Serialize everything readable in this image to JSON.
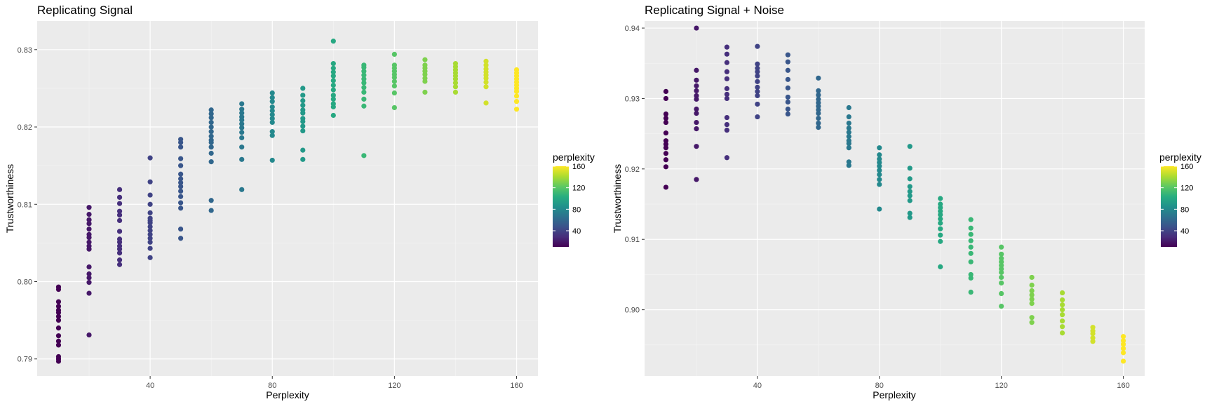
{
  "chart_data": [
    {
      "type": "scatter",
      "title": "Replicating Signal",
      "xlabel": "Perplexity",
      "ylabel": "Trustworthiness",
      "xlim": [
        3,
        167
      ],
      "ylim": [
        0.7878,
        0.8337
      ],
      "xticks": [
        40,
        80,
        120,
        160
      ],
      "yticks": [
        0.79,
        0.8,
        0.81,
        0.82,
        0.83
      ],
      "ytick_labels": [
        "0.79",
        "0.80",
        "0.81",
        "0.82",
        "0.83"
      ],
      "color_by": "perplexity",
      "points": [
        {
          "x": 10,
          "y": [
            0.7897,
            0.79,
            0.7903,
            0.7918,
            0.7923,
            0.793,
            0.794,
            0.795,
            0.7955,
            0.796,
            0.7963,
            0.7968,
            0.7974,
            0.799,
            0.7993
          ]
        },
        {
          "x": 20,
          "y": [
            0.7931,
            0.7985,
            0.7999,
            0.8005,
            0.801,
            0.8019,
            0.8042,
            0.8046,
            0.8051,
            0.8057,
            0.8061,
            0.8068,
            0.8075,
            0.808,
            0.8087,
            0.8096
          ]
        },
        {
          "x": 30,
          "y": [
            0.8022,
            0.8028,
            0.8037,
            0.8042,
            0.8046,
            0.8051,
            0.8055,
            0.8065,
            0.8079,
            0.8086,
            0.8091,
            0.8101,
            0.8109,
            0.8119
          ]
        },
        {
          "x": 40,
          "y": [
            0.8031,
            0.8043,
            0.8051,
            0.8056,
            0.8061,
            0.8066,
            0.8071,
            0.8076,
            0.8079,
            0.8082,
            0.8089,
            0.81,
            0.8112,
            0.8129,
            0.816
          ]
        },
        {
          "x": 50,
          "y": [
            0.8056,
            0.8068,
            0.8095,
            0.8102,
            0.811,
            0.8117,
            0.8123,
            0.8128,
            0.8133,
            0.8139,
            0.815,
            0.8159,
            0.8174,
            0.818,
            0.8184
          ]
        },
        {
          "x": 60,
          "y": [
            0.8092,
            0.8105,
            0.8155,
            0.8166,
            0.8174,
            0.818,
            0.8183,
            0.8188,
            0.8194,
            0.82,
            0.8206,
            0.8212,
            0.8217,
            0.8222
          ]
        },
        {
          "x": 70,
          "y": [
            0.8119,
            0.8158,
            0.8174,
            0.8186,
            0.8193,
            0.8199,
            0.8204,
            0.8209,
            0.8213,
            0.8218,
            0.8223,
            0.823
          ]
        },
        {
          "x": 80,
          "y": [
            0.8157,
            0.8189,
            0.8194,
            0.8206,
            0.8211,
            0.8216,
            0.8221,
            0.8226,
            0.8233,
            0.8238,
            0.8244
          ]
        },
        {
          "x": 90,
          "y": [
            0.8158,
            0.817,
            0.8195,
            0.8201,
            0.8207,
            0.8211,
            0.8218,
            0.8222,
            0.8228,
            0.8234,
            0.8241,
            0.825
          ]
        },
        {
          "x": 100,
          "y": [
            0.8215,
            0.8226,
            0.823,
            0.8236,
            0.8241,
            0.8248,
            0.8254,
            0.826,
            0.8266,
            0.8271,
            0.8276,
            0.8282,
            0.8311
          ]
        },
        {
          "x": 110,
          "y": [
            0.8163,
            0.8227,
            0.8236,
            0.8245,
            0.8251,
            0.8257,
            0.8262,
            0.8267,
            0.8272,
            0.8277,
            0.828
          ]
        },
        {
          "x": 120,
          "y": [
            0.8225,
            0.8244,
            0.8253,
            0.8259,
            0.8264,
            0.8268,
            0.8272,
            0.8276,
            0.828,
            0.8294
          ]
        },
        {
          "x": 130,
          "y": [
            0.8245,
            0.8259,
            0.8263,
            0.8268,
            0.8272,
            0.8276,
            0.828,
            0.8287
          ]
        },
        {
          "x": 140,
          "y": [
            0.8245,
            0.8252,
            0.8257,
            0.8262,
            0.8266,
            0.827,
            0.8274,
            0.8278,
            0.8282
          ]
        },
        {
          "x": 150,
          "y": [
            0.8231,
            0.8252,
            0.8258,
            0.8263,
            0.8267,
            0.8271,
            0.8275,
            0.828,
            0.8285
          ]
        },
        {
          "x": 160,
          "y": [
            0.8223,
            0.8233,
            0.824,
            0.8246,
            0.825,
            0.8254,
            0.8258,
            0.8262,
            0.8266,
            0.827,
            0.8274
          ]
        }
      ],
      "legend": {
        "title": "perplexity",
        "ticks": [
          40,
          80,
          120,
          160
        ],
        "range": [
          10,
          160
        ],
        "placement": "right"
      }
    },
    {
      "type": "scatter",
      "title": "Replicating Signal + Noise",
      "xlabel": "Perplexity",
      "ylabel": "Trustworthiness",
      "xlim": [
        3,
        167
      ],
      "ylim": [
        0.8906,
        0.941
      ],
      "xticks": [
        40,
        80,
        120,
        160
      ],
      "yticks": [
        0.9,
        0.91,
        0.92,
        0.93,
        0.94
      ],
      "ytick_labels": [
        "0.90",
        "0.91",
        "0.92",
        "0.93",
        "0.94"
      ],
      "color_by": "perplexity",
      "points": [
        {
          "x": 10,
          "y": [
            0.9174,
            0.9203,
            0.9213,
            0.9222,
            0.923,
            0.9235,
            0.924,
            0.9251,
            0.9266,
            0.9272,
            0.9278,
            0.93,
            0.931
          ]
        },
        {
          "x": 20,
          "y": [
            0.9185,
            0.9232,
            0.9257,
            0.9266,
            0.9279,
            0.9285,
            0.9299,
            0.9304,
            0.9311,
            0.9318,
            0.9326,
            0.934,
            0.94
          ]
        },
        {
          "x": 30,
          "y": [
            0.9216,
            0.9255,
            0.9263,
            0.9273,
            0.93,
            0.9306,
            0.9314,
            0.9328,
            0.9338,
            0.9351,
            0.9363,
            0.9373
          ]
        },
        {
          "x": 40,
          "y": [
            0.9274,
            0.9292,
            0.9304,
            0.931,
            0.9316,
            0.9324,
            0.9332,
            0.9338,
            0.9343,
            0.9349,
            0.9374
          ]
        },
        {
          "x": 50,
          "y": [
            0.9278,
            0.9285,
            0.9295,
            0.9302,
            0.9315,
            0.9327,
            0.934,
            0.9352,
            0.9362
          ]
        },
        {
          "x": 60,
          "y": [
            0.9259,
            0.9265,
            0.9272,
            0.9279,
            0.9284,
            0.9289,
            0.9294,
            0.9299,
            0.9305,
            0.9311,
            0.9329
          ]
        },
        {
          "x": 70,
          "y": [
            0.9205,
            0.921,
            0.923,
            0.9236,
            0.924,
            0.9246,
            0.9252,
            0.9258,
            0.9265,
            0.9274,
            0.9287
          ]
        },
        {
          "x": 80,
          "y": [
            0.9143,
            0.9178,
            0.9185,
            0.9192,
            0.9198,
            0.9204,
            0.9209,
            0.9214,
            0.922,
            0.923
          ]
        },
        {
          "x": 90,
          "y": [
            0.9131,
            0.9137,
            0.9155,
            0.9162,
            0.9168,
            0.9175,
            0.9186,
            0.9201,
            0.9232
          ]
        },
        {
          "x": 100,
          "y": [
            0.9061,
            0.9097,
            0.9106,
            0.9115,
            0.9123,
            0.9129,
            0.9135,
            0.914,
            0.9145,
            0.915,
            0.9158
          ]
        },
        {
          "x": 110,
          "y": [
            0.9025,
            0.9045,
            0.905,
            0.9068,
            0.908,
            0.9089,
            0.9098,
            0.9107,
            0.9116,
            0.9128
          ]
        },
        {
          "x": 120,
          "y": [
            0.9005,
            0.9023,
            0.9038,
            0.9046,
            0.9053,
            0.9058,
            0.9063,
            0.9068,
            0.9073,
            0.9079,
            0.9089
          ]
        },
        {
          "x": 130,
          "y": [
            0.8982,
            0.8989,
            0.9009,
            0.9015,
            0.9021,
            0.9027,
            0.9035,
            0.9046
          ]
        },
        {
          "x": 140,
          "y": [
            0.8967,
            0.8976,
            0.8984,
            0.8993,
            0.9,
            0.9007,
            0.9014,
            0.9024
          ]
        },
        {
          "x": 150,
          "y": [
            0.8955,
            0.896,
            0.8966,
            0.897,
            0.8975
          ]
        },
        {
          "x": 160,
          "y": [
            0.8927,
            0.8939,
            0.8945,
            0.8951,
            0.8956,
            0.8962
          ]
        }
      ],
      "legend": {
        "title": "perplexity",
        "ticks": [
          40,
          80,
          120,
          160
        ],
        "range": [
          10,
          160
        ],
        "placement": "right"
      }
    }
  ]
}
